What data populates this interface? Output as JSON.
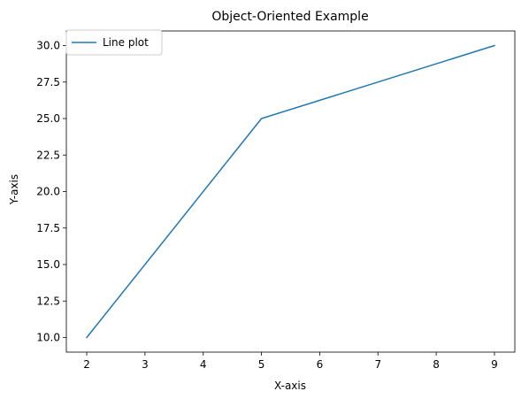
{
  "chart_data": {
    "type": "line",
    "title": "Object-Oriented Example",
    "xlabel": "X-axis",
    "ylabel": "Y-axis",
    "xlim": [
      1.65,
      9.35
    ],
    "ylim": [
      9.0,
      31.0
    ],
    "x_ticks": [
      2,
      3,
      4,
      5,
      6,
      7,
      8,
      9
    ],
    "x_tick_labels": [
      "2",
      "3",
      "4",
      "5",
      "6",
      "7",
      "8",
      "9"
    ],
    "y_ticks": [
      10.0,
      12.5,
      15.0,
      17.5,
      20.0,
      22.5,
      25.0,
      27.5,
      30.0
    ],
    "y_tick_labels": [
      "10.0",
      "12.5",
      "15.0",
      "17.5",
      "20.0",
      "22.5",
      "25.0",
      "27.5",
      "30.0"
    ],
    "grid": false,
    "legend_position": "upper-left",
    "series": [
      {
        "name": "Line plot",
        "color": "#1f77b4",
        "x": [
          2,
          5,
          9
        ],
        "y": [
          10,
          25,
          30
        ]
      }
    ]
  }
}
